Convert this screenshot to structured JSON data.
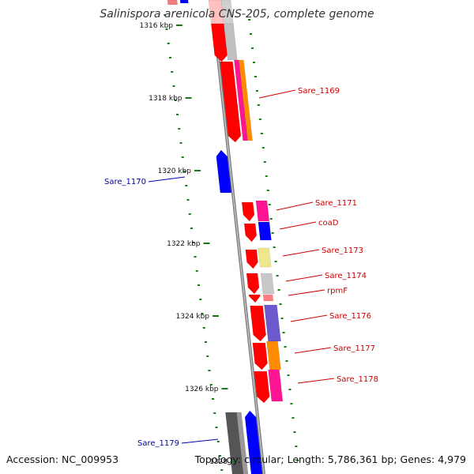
{
  "title": "Salinispora arenicola CNS-205, complete genome",
  "footer": {
    "accession": "Accession: NC_009953",
    "summary": "Topology: circular; Length: 5,786,361 bp; Genes: 4,979"
  },
  "colors": {
    "backbone": "#808080",
    "forward_label": "#cc0000",
    "reverse_label": "#0000aa",
    "gc_ticks": "#1a7a1a",
    "cds_red": "#ff0000",
    "cds_blue": "#0000ff"
  },
  "scale": {
    "ticks": [
      {
        "label": "1316 kbp"
      },
      {
        "label": "1318 kbp"
      },
      {
        "label": "1320 kbp"
      },
      {
        "label": "1322 kbp"
      },
      {
        "label": "1324 kbp"
      },
      {
        "label": "1326 kbp"
      },
      {
        "label": "1328"
      }
    ]
  },
  "gene_labels": [
    {
      "text": "Sare_1169",
      "strand": "forward"
    },
    {
      "text": "Sare_1170",
      "strand": "reverse"
    },
    {
      "text": "Sare_1171",
      "strand": "forward"
    },
    {
      "text": "coaD",
      "strand": "forward"
    },
    {
      "text": "Sare_1173",
      "strand": "forward"
    },
    {
      "text": "Sare_1174",
      "strand": "forward"
    },
    {
      "text": "rpmF",
      "strand": "forward"
    },
    {
      "text": "Sare_1176",
      "strand": "forward"
    },
    {
      "text": "Sare_1177",
      "strand": "forward"
    },
    {
      "text": "Sare_1178",
      "strand": "forward"
    },
    {
      "text": "Sare_1179",
      "strand": "reverse"
    }
  ]
}
